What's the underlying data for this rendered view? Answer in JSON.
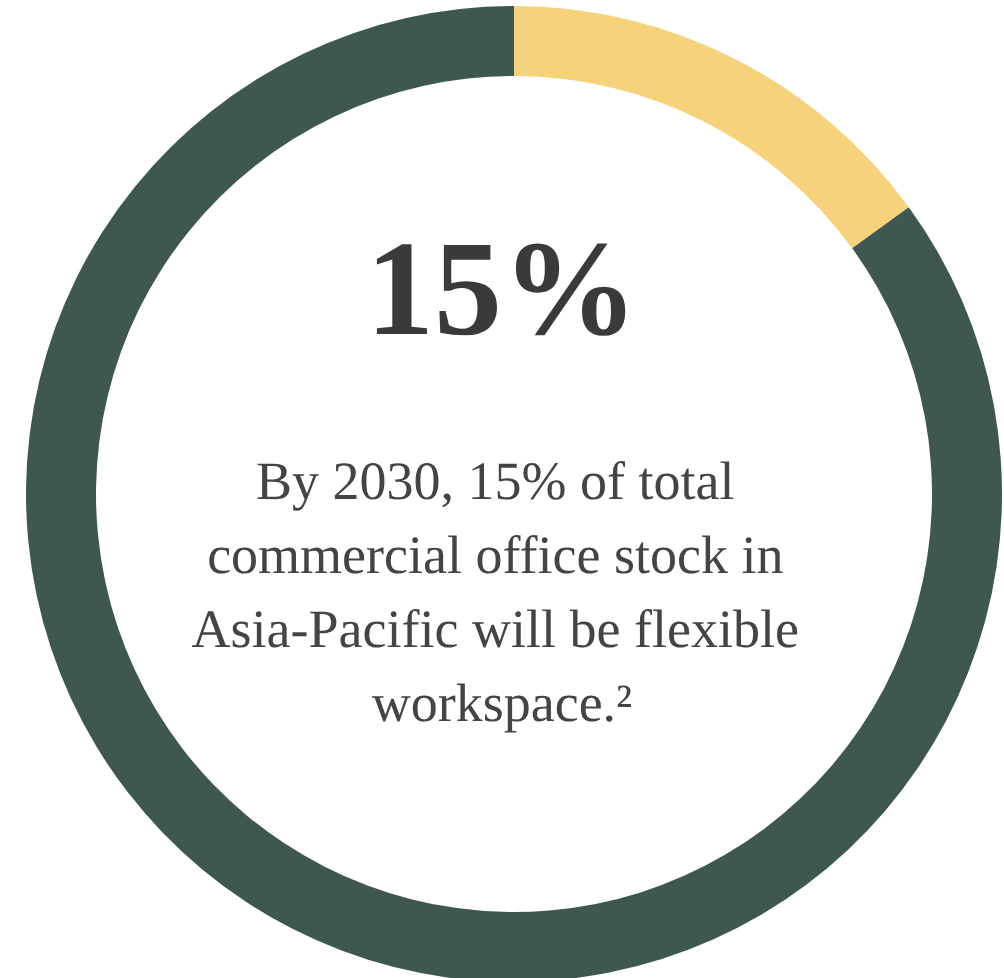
{
  "chart_data": {
    "type": "donut",
    "categories": [
      null,
      null
    ],
    "values": [
      15,
      85
    ],
    "colors": [
      "#f6d27a",
      "#3e5751"
    ],
    "annotations": [
      "15%",
      "By 2030, 15% of total commercial office stock in Asia-Pacific will be flexible workspace.²"
    ]
  }
}
